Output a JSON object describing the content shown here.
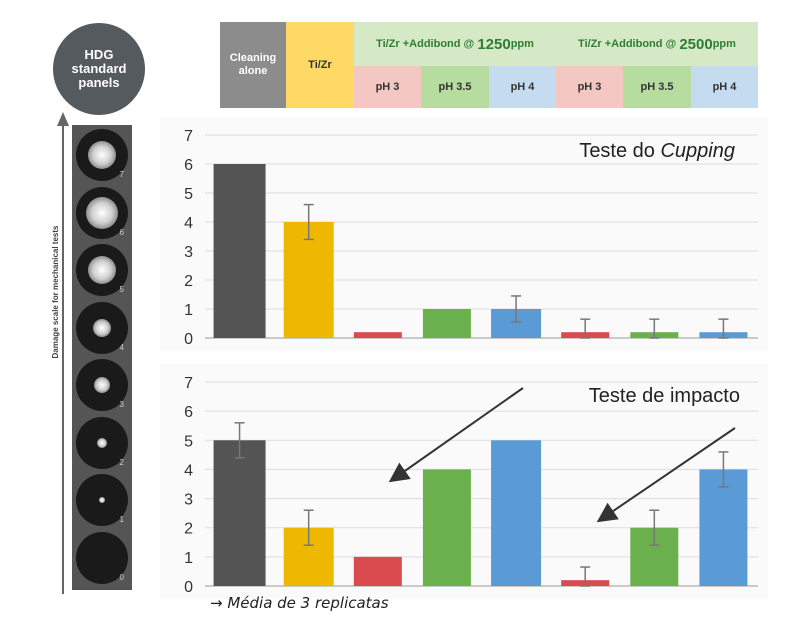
{
  "badge": {
    "line1": "HDG",
    "line2": "standard",
    "line3": "panels"
  },
  "legend": {
    "cleaning": "Cleaning alone",
    "tizr": "Ti/Zr",
    "group1": {
      "prefix": "Ti/Zr",
      "middle": " +Addibond @ ",
      "conc": "1250",
      "unit": "ppm"
    },
    "group2": {
      "prefix": "Ti/Zr",
      "middle": " +Addibond @ ",
      "conc": "2500",
      "unit": "ppm"
    },
    "ph": [
      "pH 3",
      "pH 3.5",
      "pH 4",
      "pH 3",
      "pH 3.5",
      "pH 4"
    ]
  },
  "panel_numbers": [
    "7",
    "6",
    "5",
    "4",
    "3",
    "2",
    "1",
    "0"
  ],
  "damage_axis_label": "Damage scale for mechanical tests",
  "footnote": "→ Média de 3 replicatas",
  "colors": {
    "cleaning": "#545454",
    "tizr": "#efb800",
    "ph3": "#d94b4e",
    "ph35": "#6ab04c",
    "ph4": "#5b9bd5",
    "leg_cleaning": "#8c8c8c",
    "leg_tizr": "#ffd966",
    "leg_group": "#d6e9c6",
    "leg_ph3": "#f4c7c3",
    "leg_ph35": "#b7dca0",
    "leg_ph4": "#c5dcf0",
    "leg_green_text": "#2e7d32"
  },
  "chart_data": [
    {
      "type": "bar",
      "title_prefix": "Teste do ",
      "title_italic": "Cupping",
      "ylim": [
        0,
        7
      ],
      "yticks": [
        "0",
        "1",
        "2",
        "3",
        "4",
        "5",
        "6",
        "7"
      ],
      "categories": [
        "Cleaning alone",
        "Ti/Zr",
        "1250 pH 3",
        "1250 pH 3.5",
        "1250 pH 4",
        "2500 pH 3",
        "2500 pH 3.5",
        "2500 pH 4"
      ],
      "values": [
        6,
        4,
        0.2,
        1,
        1,
        0.2,
        0.2,
        0.2
      ],
      "errors": [
        0,
        0.6,
        0,
        0,
        0.45,
        0.45,
        0.45,
        0.45
      ],
      "color_keys": [
        "cleaning",
        "tizr",
        "ph3",
        "ph35",
        "ph4",
        "ph3",
        "ph35",
        "ph4"
      ],
      "grid": true
    },
    {
      "type": "bar",
      "title": "Teste de impacto",
      "ylim": [
        0,
        7
      ],
      "yticks": [
        "0",
        "1",
        "2",
        "3",
        "4",
        "5",
        "6",
        "7"
      ],
      "categories": [
        "Cleaning alone",
        "Ti/Zr",
        "1250 pH 3",
        "1250 pH 3.5",
        "1250 pH 4",
        "2500 pH 3",
        "2500 pH 3.5",
        "2500 pH 4"
      ],
      "values": [
        5,
        2,
        1,
        4,
        5,
        0.2,
        2,
        4
      ],
      "errors": [
        0.6,
        0.6,
        0,
        0,
        0,
        0.45,
        0.6,
        0.6
      ],
      "color_keys": [
        "cleaning",
        "tizr",
        "ph3",
        "ph35",
        "ph4",
        "ph3",
        "ph35",
        "ph4"
      ],
      "grid": true
    }
  ]
}
